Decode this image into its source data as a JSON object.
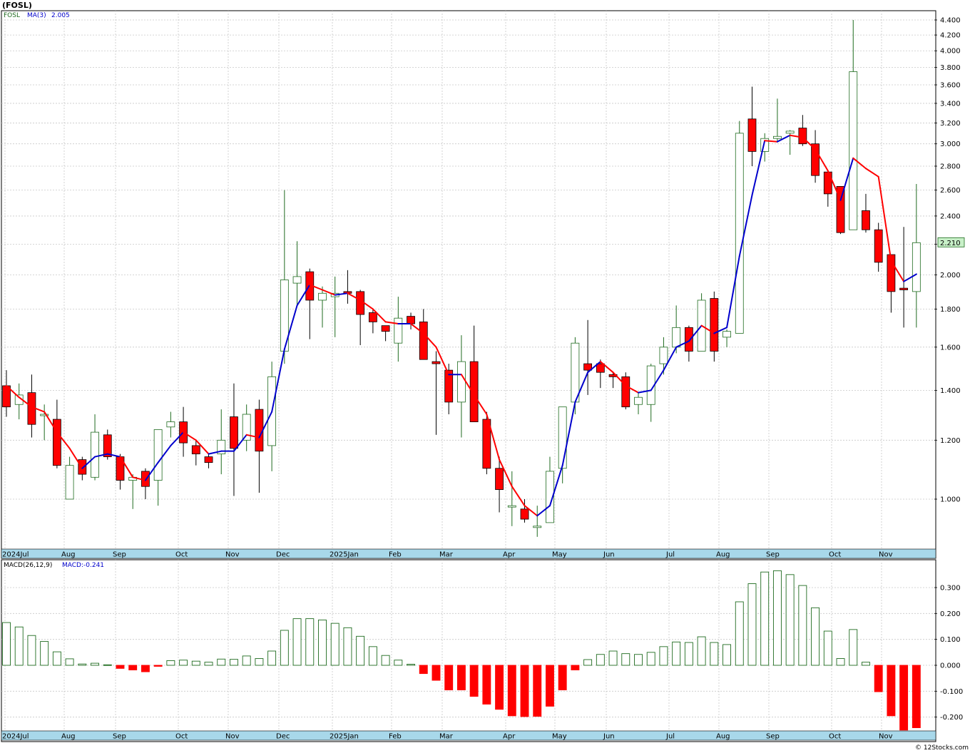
{
  "chart_title": "(FOSL)",
  "credit": "© 12Stocks.com",
  "legend_price": {
    "symbol": "FOSL",
    "ma_label": "MA(3)",
    "ma_value": "2.005"
  },
  "legend_macd": {
    "label": "MACD(26,12,9)",
    "value_label": "MACD:-0.241"
  },
  "price_tag": "2.210",
  "colors": {
    "up": "#1f6b1f",
    "down": "#ff0000",
    "ma_up": "#0000cc",
    "ma_down": "#ff0000",
    "axis_band": "#a8d8ea",
    "grid": "#c8c8c8",
    "tag_bg": "#c8f0c8",
    "macd_pos": "#1f6b1f",
    "macd_neg": "#ff0000"
  },
  "month_labels": [
    "2024Jul",
    "Aug",
    "Sep",
    "Oct",
    "Nov",
    "Dec",
    "2025Jan",
    "Feb",
    "Mar",
    "Apr",
    "May",
    "Jun",
    "Jul",
    "Aug",
    "Sep",
    "Oct",
    "Nov"
  ],
  "price_ticks": [
    "4.400",
    "4.200",
    "4.000",
    "3.800",
    "3.600",
    "3.400",
    "3.200",
    "3.000",
    "2.800",
    "2.600",
    "2.400",
    "2.200",
    "2.000",
    "1.800",
    "1.600",
    "1.400",
    "1.200",
    "1.000"
  ],
  "macd_ticks": [
    "0.300",
    "0.200",
    "0.100",
    "0.000",
    "-0.100",
    "-0.200"
  ],
  "chart_data": [
    {
      "type": "candlestick",
      "title": "(FOSL)",
      "scale": "log",
      "ylim": [
        0.9,
        4.45
      ],
      "series": [
        {
          "name": "FOSL",
          "values": [
            {
              "o": 1.42,
              "h": 1.49,
              "l": 1.29,
              "c": 1.33
            },
            {
              "o": 1.34,
              "h": 1.43,
              "l": 1.28,
              "c": 1.38
            },
            {
              "o": 1.39,
              "h": 1.47,
              "l": 1.21,
              "c": 1.26
            },
            {
              "o": 1.3,
              "h": 1.34,
              "l": 1.2,
              "c": 1.3
            },
            {
              "o": 1.28,
              "h": 1.36,
              "l": 1.1,
              "c": 1.11
            },
            {
              "o": 1.0,
              "h": 1.14,
              "l": 1.0,
              "c": 1.11
            },
            {
              "o": 1.13,
              "h": 1.14,
              "l": 1.06,
              "c": 1.08
            },
            {
              "o": 1.07,
              "h": 1.3,
              "l": 1.06,
              "c": 1.23
            },
            {
              "o": 1.22,
              "h": 1.24,
              "l": 1.13,
              "c": 1.14
            },
            {
              "o": 1.14,
              "h": 1.15,
              "l": 1.03,
              "c": 1.06
            },
            {
              "o": 1.06,
              "h": 1.08,
              "l": 0.97,
              "c": 1.07
            },
            {
              "o": 1.09,
              "h": 1.1,
              "l": 1.0,
              "c": 1.04
            },
            {
              "o": 1.06,
              "h": 1.24,
              "l": 0.98,
              "c": 1.24
            },
            {
              "o": 1.25,
              "h": 1.31,
              "l": 1.21,
              "c": 1.27
            },
            {
              "o": 1.27,
              "h": 1.33,
              "l": 1.14,
              "c": 1.19
            },
            {
              "o": 1.18,
              "h": 1.2,
              "l": 1.11,
              "c": 1.15
            },
            {
              "o": 1.14,
              "h": 1.15,
              "l": 1.1,
              "c": 1.12
            },
            {
              "o": 1.15,
              "h": 1.32,
              "l": 1.08,
              "c": 1.2
            },
            {
              "o": 1.29,
              "h": 1.43,
              "l": 1.01,
              "c": 1.17
            },
            {
              "o": 1.2,
              "h": 1.34,
              "l": 1.16,
              "c": 1.3
            },
            {
              "o": 1.32,
              "h": 1.36,
              "l": 1.02,
              "c": 1.16
            },
            {
              "o": 1.18,
              "h": 1.53,
              "l": 1.09,
              "c": 1.46
            },
            {
              "o": 1.58,
              "h": 2.6,
              "l": 1.52,
              "c": 1.97
            },
            {
              "o": 1.95,
              "h": 2.22,
              "l": 1.82,
              "c": 1.99
            },
            {
              "o": 2.02,
              "h": 2.04,
              "l": 1.64,
              "c": 1.85
            },
            {
              "o": 1.85,
              "h": 1.93,
              "l": 1.7,
              "c": 1.89
            },
            {
              "o": 1.87,
              "h": 1.99,
              "l": 1.65,
              "c": 1.89
            },
            {
              "o": 1.9,
              "h": 2.03,
              "l": 1.83,
              "c": 1.89
            },
            {
              "o": 1.9,
              "h": 1.91,
              "l": 1.61,
              "c": 1.77
            },
            {
              "o": 1.78,
              "h": 1.8,
              "l": 1.67,
              "c": 1.73
            },
            {
              "o": 1.71,
              "h": 1.71,
              "l": 1.63,
              "c": 1.68
            },
            {
              "o": 1.62,
              "h": 1.87,
              "l": 1.53,
              "c": 1.75
            },
            {
              "o": 1.76,
              "h": 1.78,
              "l": 1.69,
              "c": 1.72
            },
            {
              "o": 1.73,
              "h": 1.8,
              "l": 1.55,
              "c": 1.54
            },
            {
              "o": 1.53,
              "h": 1.58,
              "l": 1.22,
              "c": 1.52
            },
            {
              "o": 1.49,
              "h": 1.52,
              "l": 1.3,
              "c": 1.35
            },
            {
              "o": 1.35,
              "h": 1.66,
              "l": 1.21,
              "c": 1.53
            },
            {
              "o": 1.53,
              "h": 1.71,
              "l": 1.29,
              "c": 1.27
            },
            {
              "o": 1.28,
              "h": 1.31,
              "l": 1.08,
              "c": 1.1
            },
            {
              "o": 1.1,
              "h": 1.14,
              "l": 0.96,
              "c": 1.03
            },
            {
              "o": 0.98,
              "h": 1.09,
              "l": 0.92,
              "c": 0.98
            },
            {
              "o": 0.97,
              "h": 1.0,
              "l": 0.93,
              "c": 0.94
            },
            {
              "o": 0.92,
              "h": 0.98,
              "l": 0.89,
              "c": 0.92
            },
            {
              "o": 0.93,
              "h": 1.14,
              "l": 0.93,
              "c": 1.09
            },
            {
              "o": 1.1,
              "h": 1.33,
              "l": 1.05,
              "c": 1.33
            },
            {
              "o": 1.35,
              "h": 1.65,
              "l": 1.3,
              "c": 1.62
            },
            {
              "o": 1.52,
              "h": 1.74,
              "l": 1.38,
              "c": 1.49
            },
            {
              "o": 1.52,
              "h": 1.54,
              "l": 1.41,
              "c": 1.48
            },
            {
              "o": 1.47,
              "h": 1.48,
              "l": 1.41,
              "c": 1.46
            },
            {
              "o": 1.46,
              "h": 1.48,
              "l": 1.32,
              "c": 1.33
            },
            {
              "o": 1.34,
              "h": 1.39,
              "l": 1.3,
              "c": 1.37
            },
            {
              "o": 1.34,
              "h": 1.52,
              "l": 1.27,
              "c": 1.51
            },
            {
              "o": 1.52,
              "h": 1.65,
              "l": 1.47,
              "c": 1.6
            },
            {
              "o": 1.6,
              "h": 1.82,
              "l": 1.57,
              "c": 1.7
            },
            {
              "o": 1.7,
              "h": 1.71,
              "l": 1.53,
              "c": 1.58
            },
            {
              "o": 1.58,
              "h": 1.89,
              "l": 1.58,
              "c": 1.85
            },
            {
              "o": 1.86,
              "h": 1.9,
              "l": 1.53,
              "c": 1.58
            },
            {
              "o": 1.65,
              "h": 1.69,
              "l": 1.6,
              "c": 1.68
            },
            {
              "o": 1.67,
              "h": 3.22,
              "l": 1.67,
              "c": 3.1
            },
            {
              "o": 3.24,
              "h": 3.58,
              "l": 2.8,
              "c": 2.93
            },
            {
              "o": 2.93,
              "h": 3.1,
              "l": 2.84,
              "c": 3.05
            },
            {
              "o": 3.05,
              "h": 3.45,
              "l": 3.02,
              "c": 3.07
            },
            {
              "o": 3.1,
              "h": 3.13,
              "l": 2.9,
              "c": 3.12
            },
            {
              "o": 3.15,
              "h": 3.28,
              "l": 2.98,
              "c": 3.0
            },
            {
              "o": 3.0,
              "h": 3.13,
              "l": 2.66,
              "c": 2.72
            },
            {
              "o": 2.75,
              "h": 2.73,
              "l": 2.47,
              "c": 2.57
            },
            {
              "o": 2.63,
              "h": 2.63,
              "l": 2.27,
              "c": 2.28
            },
            {
              "o": 2.3,
              "h": 4.4,
              "l": 2.3,
              "c": 3.75
            },
            {
              "o": 2.44,
              "h": 2.57,
              "l": 2.28,
              "c": 2.3
            },
            {
              "o": 2.3,
              "h": 2.35,
              "l": 2.02,
              "c": 2.08
            },
            {
              "o": 2.13,
              "h": 2.13,
              "l": 1.78,
              "c": 1.9
            },
            {
              "o": 1.92,
              "h": 2.32,
              "l": 1.7,
              "c": 1.91
            },
            {
              "o": 1.9,
              "h": 2.65,
              "l": 1.7,
              "c": 2.21
            }
          ]
        },
        {
          "name": "MA(3)",
          "values": [
            1.42,
            1.37,
            1.33,
            1.31,
            1.23,
            1.17,
            1.1,
            1.14,
            1.15,
            1.14,
            1.07,
            1.06,
            1.12,
            1.18,
            1.23,
            1.2,
            1.15,
            1.16,
            1.16,
            1.22,
            1.21,
            1.31,
            1.59,
            1.82,
            1.94,
            1.91,
            1.88,
            1.89,
            1.85,
            1.8,
            1.73,
            1.72,
            1.72,
            1.67,
            1.6,
            1.47,
            1.47,
            1.38,
            1.3,
            1.13,
            1.04,
            0.98,
            0.95,
            0.98,
            1.11,
            1.35,
            1.48,
            1.53,
            1.48,
            1.42,
            1.39,
            1.4,
            1.49,
            1.6,
            1.63,
            1.71,
            1.67,
            1.7,
            2.12,
            2.56,
            3.03,
            3.02,
            3.08,
            3.06,
            2.95,
            2.76,
            2.52,
            2.87,
            2.78,
            2.71,
            2.09,
            1.96,
            2.005
          ],
          "colors": [
            "d",
            "d",
            "d",
            "d",
            "d",
            "d",
            "d",
            "u",
            "u",
            "u",
            "d",
            "d",
            "u",
            "u",
            "u",
            "d",
            "d",
            "u",
            "u",
            "u",
            "d",
            "u",
            "u",
            "u",
            "u",
            "d",
            "d",
            "u",
            "d",
            "d",
            "d",
            "d",
            "u",
            "d",
            "d",
            "d",
            "u",
            "d",
            "d",
            "d",
            "d",
            "d",
            "d",
            "u",
            "u",
            "u",
            "u",
            "u",
            "d",
            "d",
            "d",
            "u",
            "u",
            "u",
            "u",
            "u",
            "d",
            "u",
            "u",
            "u",
            "u",
            "d",
            "u",
            "d",
            "d",
            "d",
            "d",
            "u",
            "d",
            "d",
            "d",
            "d",
            "u"
          ]
        }
      ]
    },
    {
      "type": "bar",
      "title": "MACD(26,12,9)",
      "ylim": [
        -0.25,
        0.37
      ],
      "series": [
        {
          "name": "MACD",
          "values": [
            0.165,
            0.148,
            0.115,
            0.092,
            0.052,
            0.025,
            0.005,
            0.008,
            0.002,
            -0.012,
            -0.018,
            -0.025,
            -0.004,
            0.018,
            0.02,
            0.016,
            0.012,
            0.024,
            0.023,
            0.036,
            0.026,
            0.055,
            0.135,
            0.18,
            0.18,
            0.175,
            0.162,
            0.145,
            0.112,
            0.072,
            0.038,
            0.02,
            0.004,
            -0.032,
            -0.058,
            -0.095,
            -0.095,
            -0.12,
            -0.15,
            -0.17,
            -0.195,
            -0.198,
            -0.197,
            -0.158,
            -0.095,
            -0.018,
            0.022,
            0.042,
            0.055,
            0.045,
            0.042,
            0.05,
            0.072,
            0.09,
            0.088,
            0.11,
            0.088,
            0.08,
            0.245,
            0.315,
            0.36,
            0.365,
            0.35,
            0.308,
            0.222,
            0.132,
            0.026,
            0.138,
            0.012,
            -0.102,
            -0.195,
            -0.25,
            -0.241
          ]
        }
      ]
    }
  ]
}
